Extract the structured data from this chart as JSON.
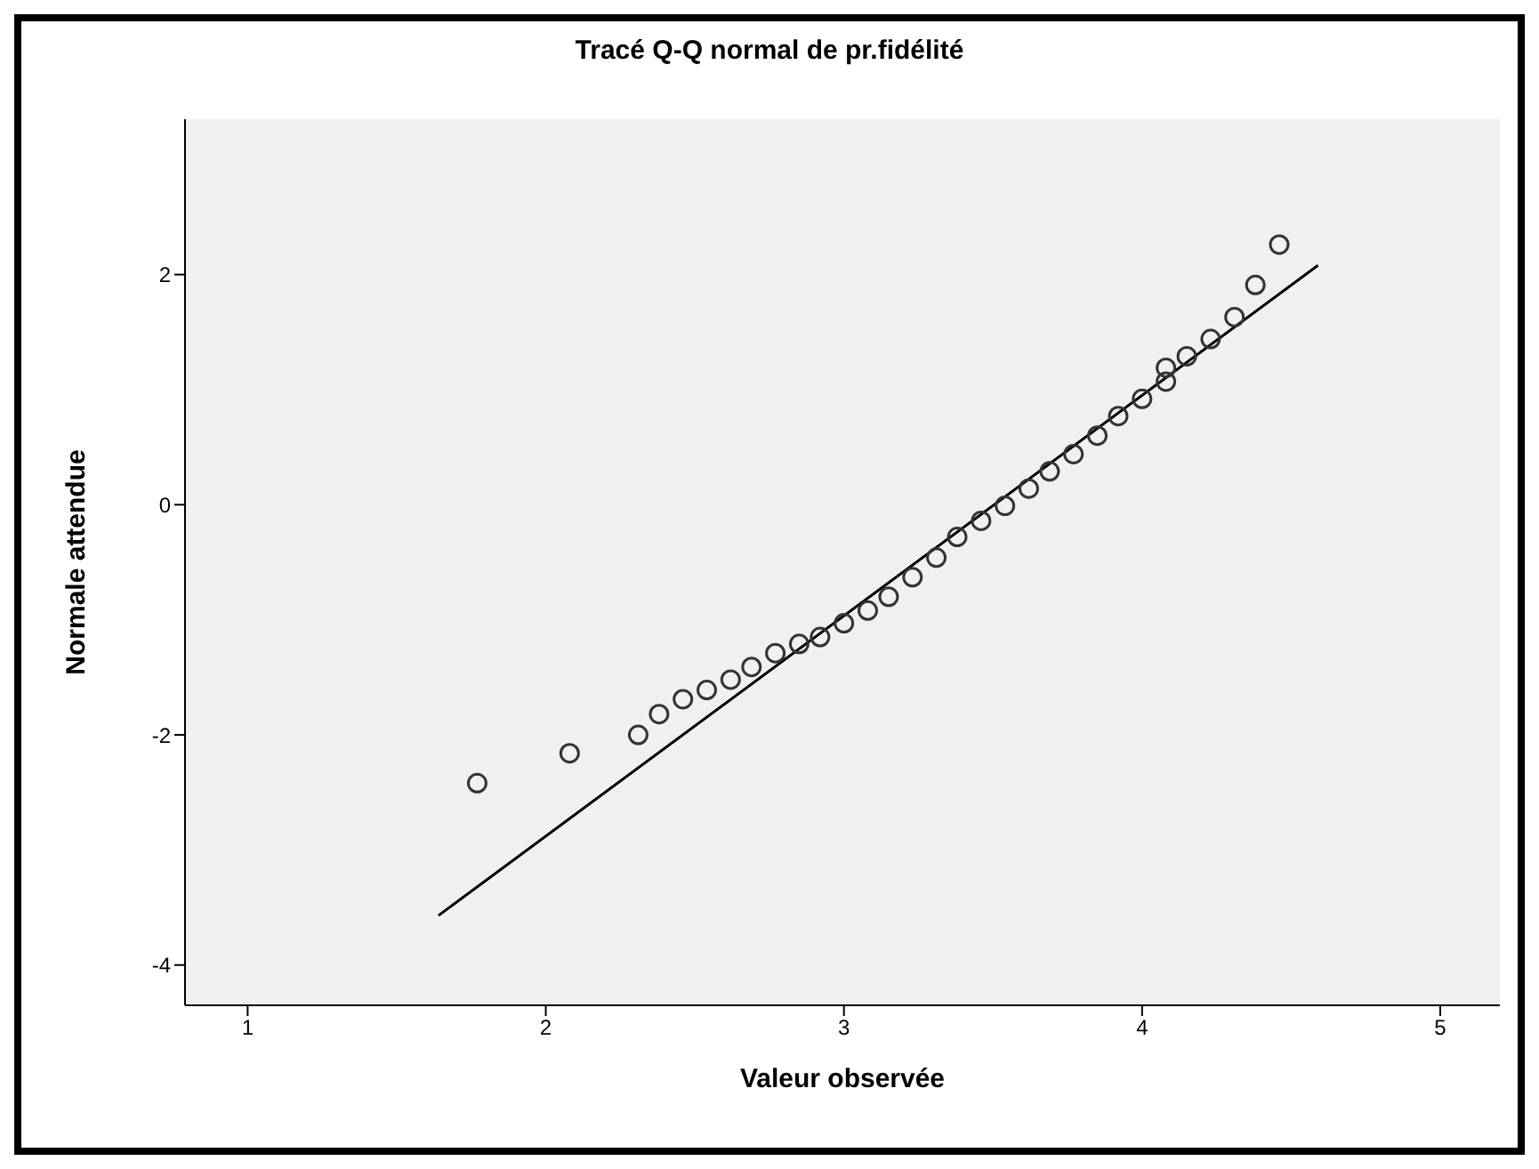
{
  "chart_data": {
    "type": "scatter",
    "title": "Tracé Q-Q normal de pr.fidélité",
    "xlabel": "Valeur observée",
    "ylabel": "Normale attendue",
    "xlim": [
      0.79,
      5.2
    ],
    "xticks": [
      1,
      2,
      3,
      4,
      5
    ],
    "ylim": [
      -4.35,
      3.35
    ],
    "yticks": [
      -4,
      -2,
      0,
      2
    ],
    "grid": false,
    "legend": false,
    "series": [
      {
        "marker": "circle",
        "color": "#333333",
        "x": [
          1.77,
          2.08,
          2.31,
          2.38,
          2.46,
          2.54,
          2.62,
          2.69,
          2.77,
          2.85,
          2.92,
          3.0,
          3.08,
          3.15,
          3.23,
          3.31,
          3.38,
          3.46,
          3.54,
          3.62,
          3.69,
          3.77,
          3.85,
          3.92,
          4.0,
          4.08,
          4.08,
          4.15,
          4.23,
          4.31,
          4.38,
          4.46
        ],
        "values": [
          -2.42,
          -2.16,
          -2.0,
          -1.82,
          -1.69,
          -1.61,
          -1.52,
          -1.41,
          -1.29,
          -1.21,
          -1.15,
          -1.03,
          -0.92,
          -0.8,
          -0.63,
          -0.46,
          -0.28,
          -0.14,
          -0.01,
          0.14,
          0.29,
          0.44,
          0.6,
          0.77,
          0.92,
          1.07,
          1.19,
          1.29,
          1.44,
          1.63,
          1.91,
          2.26
        ]
      },
      {
        "type": "line",
        "marker": "none",
        "line_style": "solid",
        "color": "#000000",
        "x": [
          1.64,
          4.59
        ],
        "values": [
          -3.57,
          2.08
        ]
      }
    ]
  }
}
